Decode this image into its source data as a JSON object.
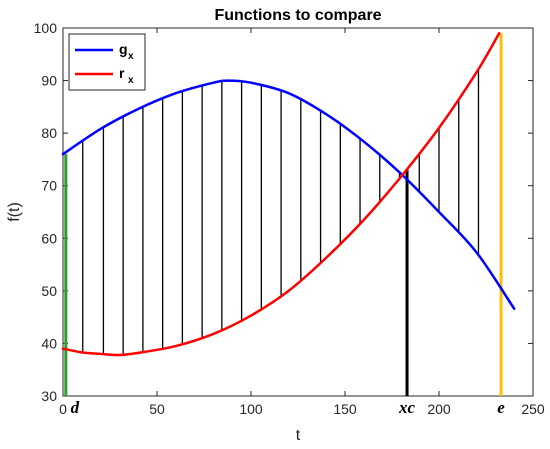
{
  "chart_data": {
    "type": "line",
    "title": "Functions to compare",
    "xlabel": "t",
    "ylabel": "f(t)",
    "xlim": [
      0,
      250
    ],
    "ylim": [
      30,
      100
    ],
    "xticks": [
      0,
      50,
      100,
      150,
      200,
      250
    ],
    "yticks": [
      30,
      40,
      50,
      60,
      70,
      80,
      90,
      100
    ],
    "grid": false,
    "legend_position": "top-left",
    "series": [
      {
        "name": "g",
        "name_sub": "x",
        "color": "#0000ff",
        "x": [
          0,
          20,
          40,
          60,
          80,
          88,
          100,
          120,
          140,
          160,
          180,
          200,
          220,
          240
        ],
        "y": [
          76,
          80.8,
          84.6,
          87.6,
          89.6,
          90,
          89.6,
          87.6,
          83.6,
          78.4,
          72.2,
          65.0,
          57.3,
          46.6
        ]
      },
      {
        "name": "r",
        "name_sub": "x",
        "color": "#ff0000",
        "x": [
          0,
          10,
          20,
          30,
          40,
          60,
          80,
          100,
          120,
          140,
          160,
          180,
          200,
          220,
          232
        ],
        "y": [
          39,
          38.3,
          38,
          37.8,
          38.2,
          39.5,
          41.8,
          45.3,
          50.0,
          56.3,
          63.5,
          71.8,
          81.0,
          91.6,
          99
        ]
      }
    ],
    "fill_lines": {
      "color": "#000000",
      "x": [
        10.5,
        21.5,
        32,
        42.5,
        53,
        63.5,
        74,
        84.5,
        95,
        105.5,
        116,
        126.5,
        137,
        147.5,
        158,
        168.5,
        179,
        189.5,
        200,
        210.5,
        221
      ]
    },
    "vertical_markers": [
      {
        "label": "d",
        "x": 1.5,
        "color": "#2ca02c",
        "y_top": 76
      },
      {
        "label": "xc",
        "x": 183,
        "color": "#000000",
        "y_top": 73
      },
      {
        "label": "e",
        "x": 233,
        "color": "#ffc000",
        "y_top": 99
      }
    ]
  }
}
